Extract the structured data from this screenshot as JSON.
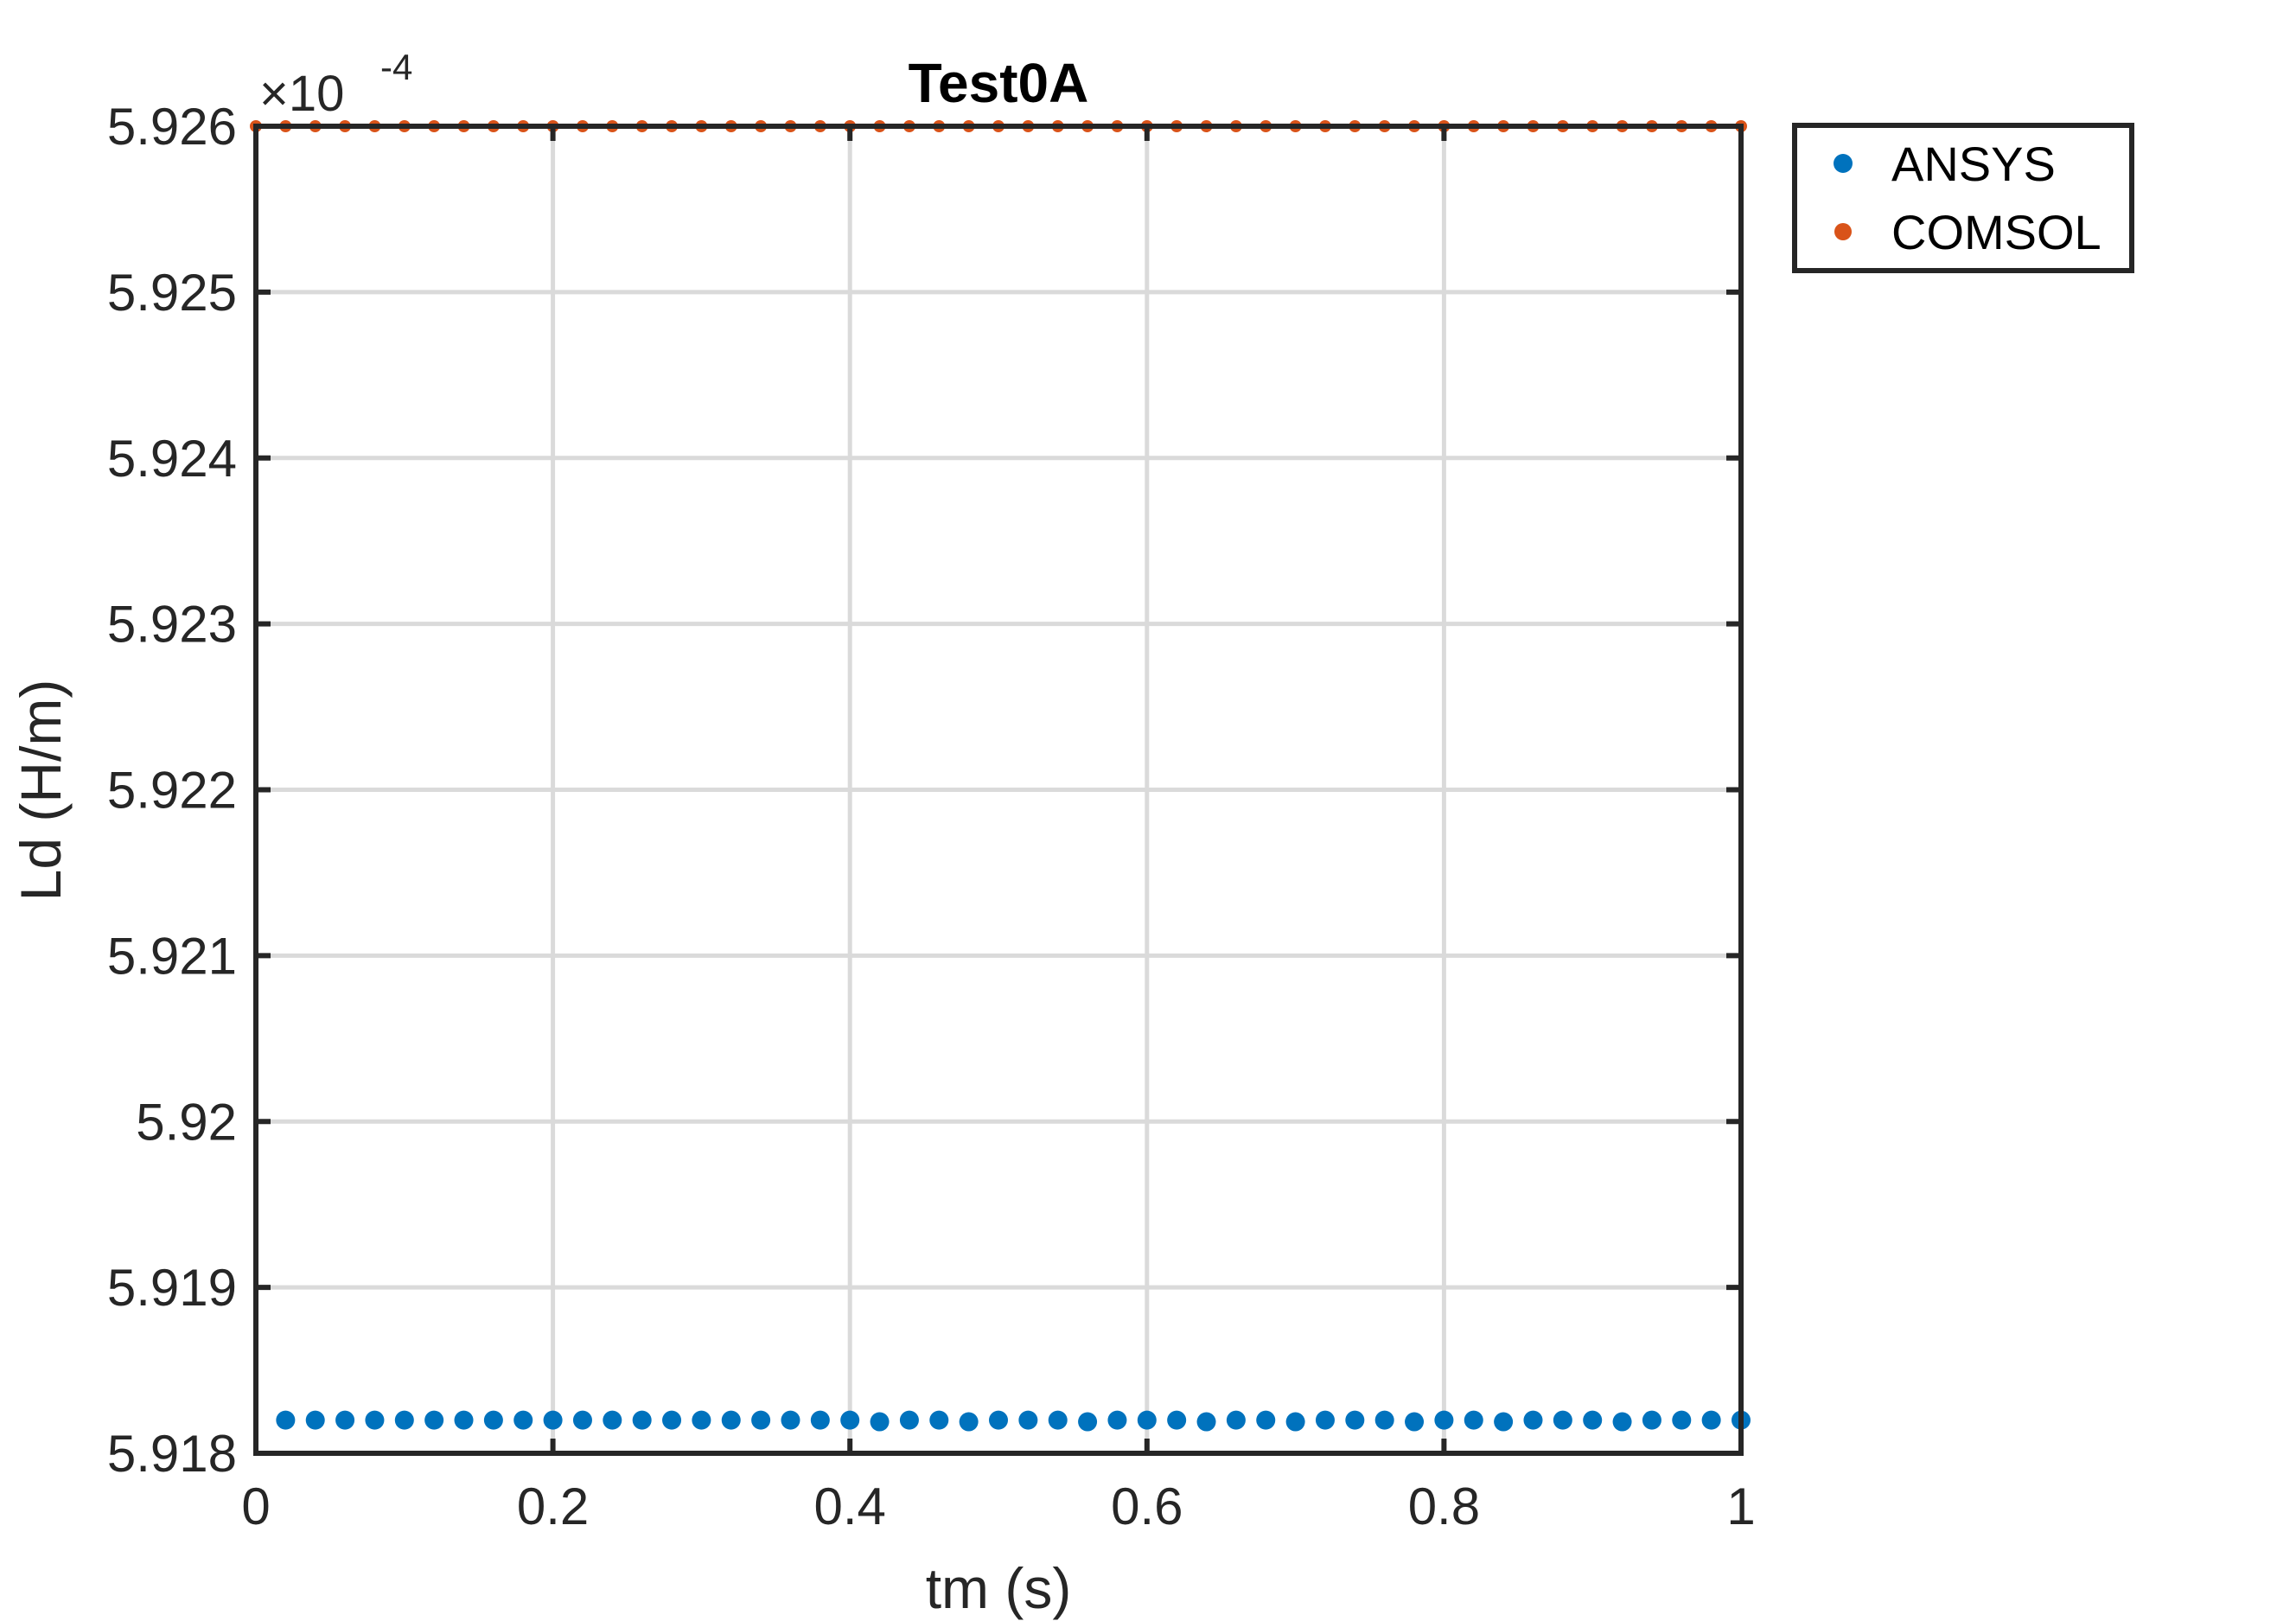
{
  "chart_data": {
    "type": "scatter",
    "title": "Test0A",
    "xlabel": "tm (s)",
    "ylabel": "Ld (H/m)",
    "xlim": [
      0,
      1
    ],
    "ylim": [
      5.918,
      5.926
    ],
    "y_multiplier_prefix": "×10",
    "y_multiplier_exponent": "-4",
    "x_ticks": [
      "0",
      "0.2",
      "0.4",
      "0.6",
      "0.8",
      "1"
    ],
    "x_tick_values": [
      0,
      0.2,
      0.4,
      0.6,
      0.8,
      1
    ],
    "y_ticks": [
      "5.918",
      "5.919",
      "5.92",
      "5.921",
      "5.922",
      "5.923",
      "5.924",
      "5.925",
      "5.926"
    ],
    "y_tick_values": [
      5.918,
      5.919,
      5.92,
      5.921,
      5.922,
      5.923,
      5.924,
      5.925,
      5.926
    ],
    "grid": true,
    "legend_position": "outside-top-right",
    "series": [
      {
        "name": "ANSYS",
        "color": "#0072BD",
        "marker": "large-dot",
        "x": [
          0.02,
          0.04,
          0.06,
          0.08,
          0.1,
          0.12,
          0.14,
          0.16,
          0.18,
          0.2,
          0.22,
          0.24,
          0.26,
          0.28,
          0.3,
          0.32,
          0.34,
          0.36,
          0.38,
          0.4,
          0.42,
          0.44,
          0.46,
          0.48,
          0.5,
          0.52,
          0.54,
          0.56,
          0.58,
          0.6,
          0.62,
          0.64,
          0.66,
          0.68,
          0.7,
          0.72,
          0.74,
          0.76,
          0.78,
          0.8,
          0.82,
          0.84,
          0.86,
          0.88,
          0.9,
          0.92,
          0.94,
          0.96,
          0.98,
          1.0
        ],
        "y": [
          5.9182,
          5.9182,
          5.9182,
          5.9182,
          5.9182,
          5.9182,
          5.9182,
          5.9182,
          5.9182,
          5.9182,
          5.9182,
          5.9182,
          5.9182,
          5.9182,
          5.9182,
          5.9182,
          5.9182,
          5.9182,
          5.9182,
          5.9182,
          5.91819,
          5.9182,
          5.9182,
          5.91819,
          5.9182,
          5.9182,
          5.9182,
          5.91819,
          5.9182,
          5.9182,
          5.9182,
          5.91819,
          5.9182,
          5.9182,
          5.91819,
          5.9182,
          5.9182,
          5.9182,
          5.91819,
          5.9182,
          5.9182,
          5.91819,
          5.9182,
          5.9182,
          5.9182,
          5.91819,
          5.9182,
          5.9182,
          5.9182,
          5.9182
        ]
      },
      {
        "name": "COMSOL",
        "color": "#D95319",
        "marker": "small-dot",
        "x": [
          0.0,
          0.02,
          0.04,
          0.06,
          0.08,
          0.1,
          0.12,
          0.14,
          0.16,
          0.18,
          0.2,
          0.22,
          0.24,
          0.26,
          0.28,
          0.3,
          0.32,
          0.34,
          0.36,
          0.38,
          0.4,
          0.42,
          0.44,
          0.46,
          0.48,
          0.5,
          0.52,
          0.54,
          0.56,
          0.58,
          0.6,
          0.62,
          0.64,
          0.66,
          0.68,
          0.7,
          0.72,
          0.74,
          0.76,
          0.78,
          0.8,
          0.82,
          0.84,
          0.86,
          0.88,
          0.9,
          0.92,
          0.94,
          0.96,
          0.98,
          1.0
        ],
        "y": [
          5.926,
          5.926,
          5.926,
          5.926,
          5.926,
          5.926,
          5.926,
          5.926,
          5.926,
          5.926,
          5.926,
          5.926,
          5.926,
          5.926,
          5.926,
          5.926,
          5.926,
          5.926,
          5.926,
          5.926,
          5.926,
          5.926,
          5.926,
          5.926,
          5.926,
          5.926,
          5.926,
          5.926,
          5.926,
          5.926,
          5.926,
          5.926,
          5.926,
          5.926,
          5.926,
          5.926,
          5.926,
          5.926,
          5.926,
          5.926,
          5.926,
          5.926,
          5.926,
          5.926,
          5.926,
          5.926,
          5.926,
          5.926,
          5.926,
          5.926,
          5.926
        ]
      }
    ]
  }
}
